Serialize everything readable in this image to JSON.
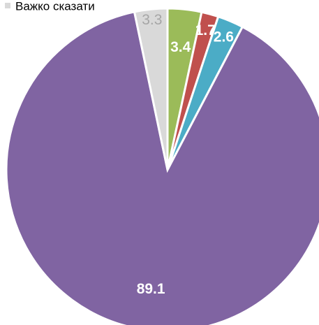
{
  "chart_data": {
    "type": "pie",
    "categories": [
      null,
      null,
      null,
      null,
      "Важко сказати"
    ],
    "values": [
      3.4,
      1.7,
      2.6,
      89.1,
      3.3
    ],
    "colors": [
      "#9bbb59",
      "#c0504d",
      "#4bacc6",
      "#8064a2",
      "#d9d9d9"
    ],
    "label_colors": [
      "#ffffff",
      "#ffffff",
      "#ffffff",
      "#ffffff",
      "#a6a6a6"
    ],
    "legend": "top-left"
  }
}
